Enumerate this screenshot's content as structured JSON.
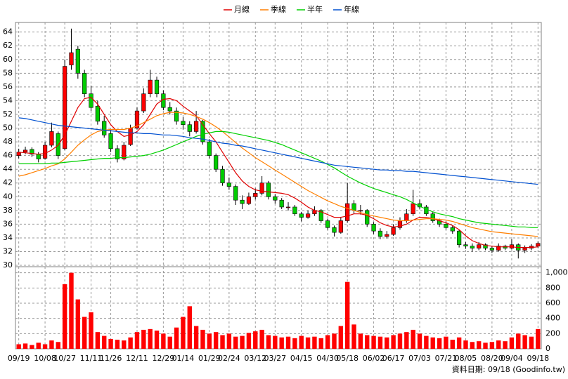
{
  "chart_data": [
    {
      "type": "candlestick",
      "categories": [
        "09/19",
        null,
        null,
        null,
        "10/08",
        null,
        null,
        "10/27",
        null,
        null,
        null,
        "11/11",
        null,
        null,
        "11/26",
        null,
        null,
        null,
        "12/11",
        null,
        null,
        null,
        "12/29",
        null,
        null,
        "01/14",
        null,
        null,
        null,
        "01/29",
        null,
        null,
        "02/24",
        null,
        null,
        null,
        "03/12",
        null,
        null,
        "03/27",
        null,
        null,
        null,
        "04/15",
        null,
        null,
        null,
        "04/30",
        null,
        null,
        "05/18",
        null,
        null,
        null,
        "06/02",
        null,
        null,
        "06/17",
        null,
        null,
        null,
        "07/03",
        null,
        null,
        null,
        "07/21",
        null,
        null,
        "08/05",
        null,
        null,
        null,
        "08/20",
        null,
        null,
        "09/04",
        null,
        null,
        null,
        "09/18"
      ],
      "open": [
        46.0,
        46.5,
        46.9,
        46.2,
        45.6,
        47.5,
        49.2,
        47.0,
        59.2,
        61.5,
        58.0,
        55.0,
        53.2,
        51.0,
        49.2,
        47.0,
        45.5,
        47.6,
        50.0,
        52.5,
        55.0,
        57.0,
        55.0,
        53.0,
        52.5,
        51.0,
        50.5,
        49.5,
        51.0,
        48.0,
        46.0,
        44.0,
        42.0,
        41.5,
        39.5,
        39.0,
        40.0,
        40.5,
        42.0,
        40.0,
        39.5,
        38.5,
        38.5,
        37.5,
        37.0,
        37.5,
        38.0,
        36.5,
        35.5,
        34.8,
        36.5,
        39.0,
        38.0,
        38.0,
        36.0,
        35.0,
        34.2,
        34.5,
        35.5,
        36.5,
        37.5,
        39.0,
        38.5,
        37.5,
        36.5,
        36.0,
        35.5,
        35.0,
        33.0,
        32.8,
        32.5,
        33.0,
        32.5,
        32.2,
        32.8,
        32.5,
        33.0,
        32.2,
        32.5,
        32.8
      ],
      "high": [
        47.0,
        47.3,
        47.2,
        46.5,
        48.0,
        50.8,
        49.5,
        60.0,
        64.5,
        62.0,
        58.5,
        56.2,
        54.0,
        51.8,
        49.8,
        47.5,
        48.0,
        50.5,
        53.0,
        55.8,
        58.5,
        57.5,
        55.5,
        53.8,
        53.0,
        51.6,
        51.0,
        52.5,
        51.2,
        48.4,
        46.3,
        44.5,
        42.8,
        41.8,
        40.2,
        40.6,
        41.2,
        43.0,
        42.3,
        40.4,
        39.8,
        39.2,
        38.8,
        37.8,
        38.0,
        38.6,
        38.2,
        36.8,
        35.8,
        37.0,
        42.0,
        39.5,
        38.8,
        38.2,
        36.3,
        35.4,
        35.0,
        36.0,
        37.0,
        38.2,
        41.0,
        39.6,
        38.8,
        37.8,
        36.8,
        36.4,
        35.8,
        35.2,
        33.4,
        33.2,
        33.4,
        33.2,
        32.8,
        33.2,
        33.0,
        33.8,
        33.2,
        32.9,
        33.1,
        33.5
      ],
      "low": [
        45.6,
        46.2,
        45.8,
        45.0,
        45.4,
        47.2,
        45.5,
        46.8,
        58.5,
        57.2,
        54.5,
        52.5,
        50.5,
        48.6,
        46.5,
        45.0,
        45.3,
        47.4,
        49.8,
        52.2,
        54.5,
        54.5,
        52.6,
        52.0,
        50.5,
        49.8,
        48.8,
        49.2,
        47.6,
        45.6,
        43.6,
        41.6,
        41.0,
        38.8,
        38.2,
        38.8,
        39.6,
        40.2,
        39.6,
        39.0,
        38.2,
        38.0,
        37.2,
        36.4,
        36.8,
        37.2,
        36.2,
        35.2,
        34.2,
        34.6,
        36.2,
        37.5,
        37.4,
        35.6,
        34.6,
        33.8,
        33.9,
        34.3,
        35.2,
        36.2,
        37.2,
        38.2,
        37.2,
        36.2,
        35.6,
        35.2,
        34.6,
        32.6,
        32.4,
        32.0,
        32.2,
        32.2,
        31.8,
        32.0,
        32.2,
        32.3,
        31.0,
        31.8,
        32.2,
        32.5
      ],
      "close": [
        46.5,
        46.8,
        46.2,
        45.5,
        47.5,
        49.5,
        46.0,
        59.0,
        61.0,
        58.0,
        55.0,
        53.0,
        51.0,
        49.0,
        47.0,
        45.5,
        47.5,
        50.0,
        52.5,
        55.0,
        57.0,
        55.0,
        53.0,
        52.5,
        51.0,
        50.5,
        49.5,
        51.0,
        48.0,
        46.0,
        44.0,
        42.0,
        41.5,
        39.5,
        39.0,
        40.0,
        40.5,
        42.0,
        40.0,
        39.5,
        38.5,
        38.5,
        37.5,
        37.0,
        37.5,
        38.0,
        36.5,
        35.5,
        34.8,
        36.5,
        39.0,
        38.0,
        38.0,
        36.0,
        35.0,
        34.2,
        34.5,
        35.5,
        36.5,
        37.5,
        39.0,
        38.5,
        37.5,
        36.5,
        36.0,
        35.5,
        35.0,
        33.0,
        32.8,
        32.5,
        33.0,
        32.5,
        32.2,
        32.8,
        32.5,
        33.0,
        32.2,
        32.5,
        32.8,
        33.2
      ],
      "up_color": "#ff0000",
      "down_color": "#00cc00",
      "series": [
        {
          "name": "月線",
          "color": "#e00000",
          "values": [
            46.5,
            46.4,
            46.3,
            46.2,
            46.3,
            46.8,
            47.5,
            49,
            51,
            53,
            54.3,
            54.5,
            53.5,
            52,
            50.5,
            49.5,
            48.8,
            49,
            49.5,
            50.5,
            52,
            53.5,
            54.2,
            54.3,
            54,
            53.2,
            52.5,
            51.8,
            50.5,
            49.2,
            48,
            46.5,
            45,
            43.5,
            42.3,
            41.5,
            41,
            40.8,
            40.7,
            40.6,
            40.5,
            40.3,
            39.8,
            39.2,
            38.5,
            38,
            37.8,
            37.4,
            37,
            37,
            37.2,
            37.5,
            37.5,
            37.3,
            36.8,
            36.2,
            35.8,
            35.6,
            35.7,
            36,
            36.6,
            37,
            37,
            36.8,
            36.5,
            36.2,
            35.8,
            35.2,
            34.3,
            33.6,
            33.2,
            32.9,
            32.8,
            32.7,
            32.7,
            32.7,
            32.6,
            32.6,
            32.6,
            32.7
          ]
        },
        {
          "name": "季線",
          "color": "#ff7f00",
          "values": [
            43,
            43.2,
            43.5,
            43.8,
            44.1,
            44.5,
            44.8,
            45.5,
            46.5,
            47.5,
            48.3,
            49,
            49.5,
            49.7,
            49.8,
            49.8,
            49.8,
            50,
            50.3,
            50.8,
            51.3,
            51.8,
            52.1,
            52.3,
            52.3,
            52.2,
            52,
            51.7,
            51.3,
            50.8,
            50.2,
            49.5,
            48.7,
            47.9,
            47.1,
            46.4,
            45.7,
            45.1,
            44.5,
            43.9,
            43.3,
            42.7,
            42.1,
            41.5,
            40.9,
            40.4,
            39.9,
            39.4,
            39,
            38.6,
            38.3,
            38,
            37.7,
            37.4,
            37.2,
            37,
            36.8,
            36.6,
            36.5,
            36.5,
            36.6,
            36.7,
            36.8,
            36.8,
            36.7,
            36.6,
            36.4,
            36.1,
            35.8,
            35.5,
            35.3,
            35.1,
            34.9,
            34.8,
            34.7,
            34.6,
            34.5,
            34.4,
            34.3,
            34.2
          ]
        },
        {
          "name": "半年",
          "color": "#00d000",
          "values": [
            44.8,
            44.8,
            44.8,
            44.8,
            44.8,
            44.9,
            44.9,
            45,
            45.1,
            45.2,
            45.3,
            45.4,
            45.5,
            45.6,
            45.6,
            45.7,
            45.7,
            45.8,
            45.9,
            46,
            46.2,
            46.5,
            46.8,
            47.2,
            47.6,
            48,
            48.4,
            48.8,
            49.1,
            49.3,
            49.5,
            49.5,
            49.4,
            49.2,
            49,
            48.8,
            48.6,
            48.4,
            48.2,
            47.9,
            47.6,
            47.2,
            46.8,
            46.4,
            46,
            45.6,
            45.2,
            44.7,
            44.2,
            43.6,
            43,
            42.5,
            42,
            41.6,
            41.2,
            40.9,
            40.6,
            40.3,
            40,
            39.6,
            39.1,
            38.6,
            38.2,
            37.8,
            37.5,
            37.3,
            37.1,
            36.8,
            36.6,
            36.4,
            36.2,
            36.1,
            36,
            35.9,
            35.8,
            35.7,
            35.6,
            35.6,
            35.5,
            35.5
          ]
        },
        {
          "name": "年線",
          "color": "#0050d0",
          "values": [
            51.5,
            51.4,
            51.2,
            51,
            50.8,
            50.6,
            50.4,
            50.3,
            50.2,
            50.1,
            50,
            49.9,
            49.8,
            49.7,
            49.6,
            49.5,
            49.4,
            49.3,
            49.3,
            49.2,
            49.2,
            49.1,
            49,
            49,
            48.9,
            48.8,
            48.6,
            48.5,
            48.4,
            48.2,
            48,
            47.8,
            47.7,
            47.5,
            47.4,
            47.2,
            47,
            46.8,
            46.6,
            46.4,
            46.2,
            46,
            45.8,
            45.6,
            45.4,
            45.2,
            45,
            44.8,
            44.6,
            44.5,
            44.4,
            44.3,
            44.2,
            44.1,
            44,
            43.9,
            43.9,
            43.8,
            43.8,
            43.7,
            43.7,
            43.6,
            43.5,
            43.4,
            43.3,
            43.2,
            43.1,
            43,
            42.9,
            42.8,
            42.7,
            42.6,
            42.5,
            42.4,
            42.3,
            42.2,
            42.1,
            42,
            41.9,
            41.8
          ]
        }
      ],
      "ylim": [
        29.8,
        65.4
      ],
      "yticks": [
        30,
        32,
        34,
        36,
        38,
        40,
        42,
        44,
        46,
        48,
        50,
        52,
        54,
        56,
        58,
        60,
        62,
        64
      ],
      "grid": true
    },
    {
      "type": "bar",
      "values": [
        60,
        70,
        50,
        80,
        60,
        110,
        90,
        850,
        1000,
        650,
        420,
        480,
        220,
        170,
        130,
        120,
        110,
        150,
        220,
        250,
        260,
        240,
        200,
        160,
        280,
        420,
        560,
        300,
        250,
        200,
        220,
        180,
        200,
        160,
        170,
        210,
        230,
        250,
        180,
        170,
        150,
        160,
        140,
        170,
        150,
        160,
        140,
        180,
        200,
        300,
        880,
        320,
        200,
        180,
        170,
        160,
        150,
        180,
        200,
        220,
        250,
        200,
        170,
        150,
        140,
        160,
        120,
        150,
        110,
        90,
        100,
        80,
        90,
        110,
        100,
        150,
        200,
        180,
        160,
        260
      ],
      "color": "#ff0000",
      "ylim": [
        0,
        1080
      ],
      "yticks": [
        0,
        200,
        400,
        600,
        800,
        {
          "value": 1000,
          "label": "1,000"
        }
      ],
      "grid": true,
      "footer": "資料日期: 09/18 (Goodinfo.tw)"
    }
  ]
}
